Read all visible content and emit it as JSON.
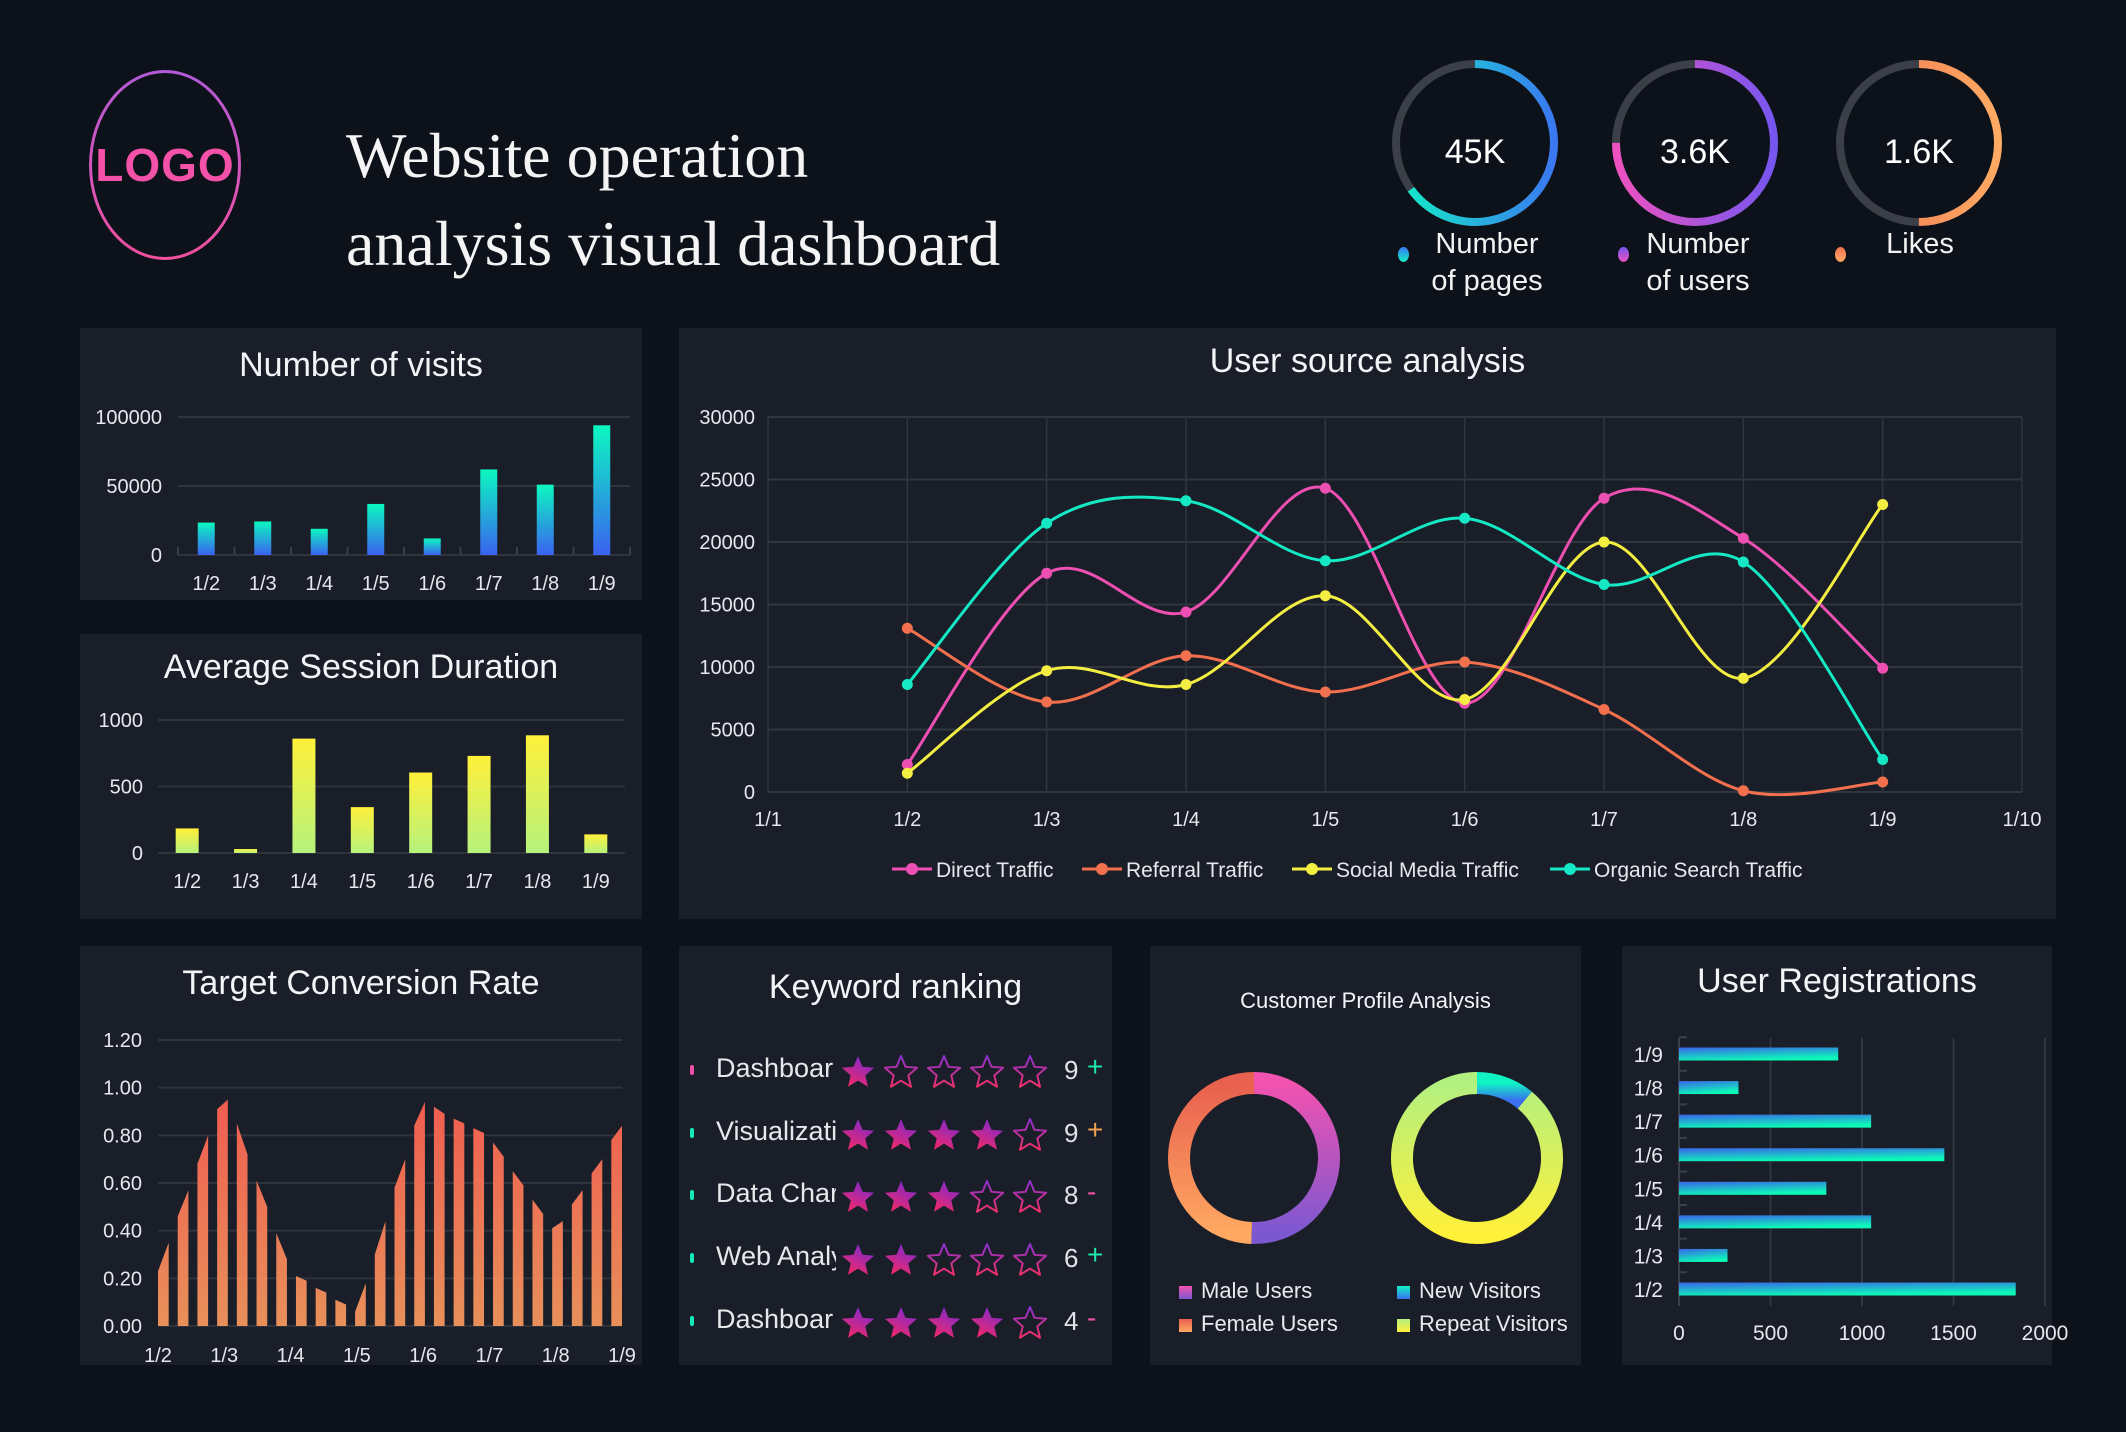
{
  "header": {
    "logo": "LOGO",
    "title_line1": "Website operation",
    "title_line2": "analysis visual dashboard"
  },
  "kpis": [
    {
      "value": "45K",
      "label_line1": "Number",
      "label_line2": "of pages",
      "progress": 0.65,
      "colors": [
        "#12f0c6",
        "#3a78f2"
      ]
    },
    {
      "value": "3.6K",
      "label_line1": "Number",
      "label_line2": "of users",
      "progress": 0.75,
      "colors": [
        "#ee52c0",
        "#7656f0"
      ]
    },
    {
      "value": "1.6K",
      "label_line1": "Likes",
      "label_line2": "",
      "progress": 0.5,
      "colors": [
        "#f07452",
        "#ffaa62"
      ]
    }
  ],
  "keyword_ranking": {
    "title": "Keyword ranking",
    "rows": [
      {
        "label": "Dashboar",
        "stars": 1,
        "rank": "9",
        "change": "+",
        "change_color": "#1de8a8",
        "dot_color": "#f04fa8"
      },
      {
        "label": "Visualizati",
        "stars": 4,
        "rank": "9",
        "change": "+",
        "change_color": "#f0a050",
        "dot_color": "#12e8b8"
      },
      {
        "label": "Data Char",
        "stars": 3,
        "rank": "8",
        "change": "-",
        "change_color": "#f04fa8",
        "dot_color": "#12e8b8"
      },
      {
        "label": "Web Analy",
        "stars": 2,
        "rank": "6",
        "change": "+",
        "change_color": "#1de8a8",
        "dot_color": "#12e8b8"
      },
      {
        "label": "Dashboar",
        "stars": 4,
        "rank": "4",
        "change": "-",
        "change_color": "#f04fa8",
        "dot_color": "#12e8b8"
      }
    ]
  },
  "chart_data": [
    {
      "type": "bar",
      "title": "Number of visits",
      "categories": [
        "1/2",
        "1/3",
        "1/4",
        "1/5",
        "1/6",
        "1/7",
        "1/8",
        "1/9"
      ],
      "values": [
        23500,
        24300,
        19000,
        37000,
        12000,
        62000,
        51000,
        94000
      ],
      "ylim": [
        0,
        100000
      ],
      "yticks": [
        "0",
        "50000",
        "100000"
      ],
      "grid": true,
      "colors": [
        "#0cf8c0",
        "#3a62f0"
      ]
    },
    {
      "type": "bar",
      "title": "Average Session Duration",
      "categories": [
        "1/2",
        "1/3",
        "1/4",
        "1/5",
        "1/6",
        "1/7",
        "1/8",
        "1/9"
      ],
      "values": [
        185,
        30,
        860,
        345,
        605,
        730,
        885,
        140
      ],
      "ylim": [
        0,
        1000
      ],
      "yticks": [
        "0",
        "500",
        "1000"
      ],
      "grid": true,
      "colors": [
        "#fff03a",
        "#b6f27c"
      ]
    },
    {
      "type": "bar",
      "title": "Target Conversion Rate",
      "x_ticks": [
        "1/2",
        "1/3",
        "1/4",
        "1/5",
        "1/6",
        "1/7",
        "1/8",
        "1/9"
      ],
      "bars": [
        [
          0.23,
          0.35
        ],
        [
          0.46,
          0.57
        ],
        [
          0.68,
          0.8
        ],
        [
          0.91,
          0.95
        ],
        [
          0.85,
          0.72
        ],
        [
          0.61,
          0.5
        ],
        [
          0.39,
          0.28
        ],
        [
          0.21,
          0.19
        ],
        [
          0.16,
          0.14
        ],
        [
          0.11,
          0.09
        ],
        [
          0.06,
          0.18
        ],
        [
          0.3,
          0.44
        ],
        [
          0.58,
          0.7
        ],
        [
          0.84,
          0.94
        ],
        [
          0.92,
          0.89
        ],
        [
          0.87,
          0.85
        ],
        [
          0.83,
          0.81
        ],
        [
          0.77,
          0.71
        ],
        [
          0.65,
          0.59
        ],
        [
          0.53,
          0.47
        ],
        [
          0.41,
          0.44
        ],
        [
          0.51,
          0.57
        ],
        [
          0.64,
          0.7
        ],
        [
          0.78,
          0.84
        ]
      ],
      "ylim": [
        0,
        1.2
      ],
      "yticks": [
        "0.00",
        "0.20",
        "0.40",
        "0.60",
        "0.80",
        "1.00",
        "1.20"
      ],
      "grid": true,
      "colors": [
        "#f05a50",
        "#e8905a"
      ]
    },
    {
      "type": "line",
      "title": "User source analysis",
      "x": [
        "1/2",
        "1/3",
        "1/4",
        "1/5",
        "1/6",
        "1/7",
        "1/8",
        "1/9"
      ],
      "x_ticks": [
        "1/1",
        "1/2",
        "1/3",
        "1/4",
        "1/5",
        "1/6",
        "1/7",
        "1/8",
        "1/9",
        "1/10"
      ],
      "ylim": [
        0,
        30000
      ],
      "yticks": [
        "0",
        "5000",
        "10000",
        "15000",
        "20000",
        "25000",
        "30000"
      ],
      "grid": true,
      "legend": "bottom",
      "smooth": true,
      "series": [
        {
          "name": "Direct Traffic",
          "color": "#ee4fb2",
          "values": [
            2200,
            17500,
            14400,
            24300,
            7100,
            23500,
            20300,
            9900
          ]
        },
        {
          "name": "Referral Traffic",
          "color": "#f2704e",
          "values": [
            13100,
            7200,
            10900,
            8000,
            10400,
            6600,
            100,
            800
          ]
        },
        {
          "name": "Social Media Traffic",
          "color": "#f4ee42",
          "values": [
            1500,
            9700,
            8600,
            15700,
            7400,
            20000,
            9100,
            23000
          ]
        },
        {
          "name": "Organic Search Traffic",
          "color": "#14e8c4",
          "values": [
            8600,
            21500,
            23300,
            18500,
            21900,
            16600,
            18400,
            2600
          ]
        }
      ]
    },
    {
      "type": "pie",
      "title": "Customer Profile Analysis",
      "donuts": [
        {
          "slices": [
            {
              "name": "Male Users",
              "value": 50.5,
              "colors": [
                "#f252b0",
                "#7c58d0"
              ]
            },
            {
              "name": "Female Users",
              "value": 49.5,
              "colors": [
                "#e8604e",
                "#ffa862"
              ]
            }
          ]
        },
        {
          "slices": [
            {
              "name": "New Visitors",
              "value": 11,
              "colors": [
                "#10f4c4",
                "#3a70f0"
              ]
            },
            {
              "name": "Repeat Visitors",
              "value": 89,
              "colors": [
                "#b2f080",
                "#fff03a"
              ]
            }
          ]
        }
      ]
    },
    {
      "type": "bar",
      "title": "User Registrations",
      "orientation": "horizontal",
      "categories": [
        "1/9",
        "1/8",
        "1/7",
        "1/6",
        "1/5",
        "1/4",
        "1/3",
        "1/2"
      ],
      "values": [
        870,
        325,
        1050,
        1450,
        805,
        1050,
        265,
        1840
      ],
      "xlim": [
        0,
        2000
      ],
      "xticks": [
        "0",
        "500",
        "1000",
        "1500",
        "2000"
      ],
      "grid": true,
      "colors": [
        "#3a64e8",
        "#0cfab8"
      ]
    }
  ]
}
